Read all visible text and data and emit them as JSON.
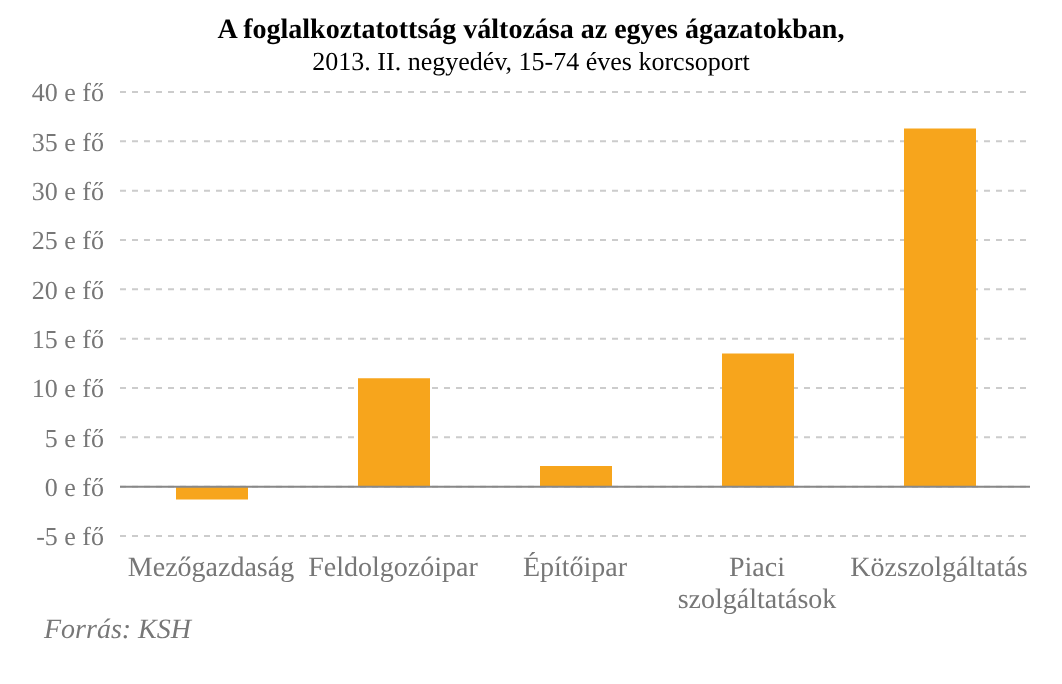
{
  "chart_data": {
    "type": "bar",
    "title": "A foglalkoztatottság változása az egyes ágazatokban,",
    "subtitle": "2013. II. negyedév, 15-74 éves korcsoport",
    "categories": [
      "Mezőgazdaság",
      "Feldolgozóipar",
      "Építőipar",
      "Piaci szolgáltatások",
      "Közszolgáltatás"
    ],
    "values": [
      -1.3,
      11,
      2.1,
      13.5,
      36.3
    ],
    "color": "#f7a51c",
    "ylim": [
      -5,
      40
    ],
    "yticks": [
      {
        "value": -5,
        "label": "-5 e fő"
      },
      {
        "value": 0,
        "label": "0 e fő"
      },
      {
        "value": 5,
        "label": "5 e fő"
      },
      {
        "value": 10,
        "label": "10 e fő"
      },
      {
        "value": 15,
        "label": "15 e fő"
      },
      {
        "value": 20,
        "label": "20 e fő"
      },
      {
        "value": 25,
        "label": "25 e fő"
      },
      {
        "value": 30,
        "label": "30 e fő"
      },
      {
        "value": 35,
        "label": "35 e fő"
      },
      {
        "value": 40,
        "label": "40 e fő"
      }
    ],
    "grid": "y",
    "legend": false,
    "annotations": [
      "Forrás: KSH"
    ]
  }
}
